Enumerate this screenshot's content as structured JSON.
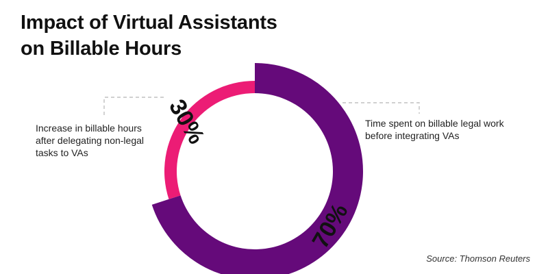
{
  "title_lines": [
    "Impact of Virtual Assistants",
    "on Billable Hours"
  ],
  "source": "Source: Thomson Reuters",
  "colors": {
    "primary": "#650a7a",
    "secondary": "#ec1c75",
    "leader": "#b5b5b5",
    "text": "#111111"
  },
  "chart_data": {
    "type": "pie",
    "style": "donut",
    "title": "Impact of Virtual Assistants on Billable Hours",
    "slices": [
      {
        "value": 70,
        "label": "70%",
        "description_lines": [
          "Time spent on billable legal work",
          "before integrating VAs"
        ],
        "color": "#650a7a"
      },
      {
        "value": 30,
        "label": "30%",
        "description_lines": [
          "Increase in billable hours",
          "after delegating non-legal",
          "tasks to VAs"
        ],
        "color": "#ec1c75"
      }
    ]
  }
}
